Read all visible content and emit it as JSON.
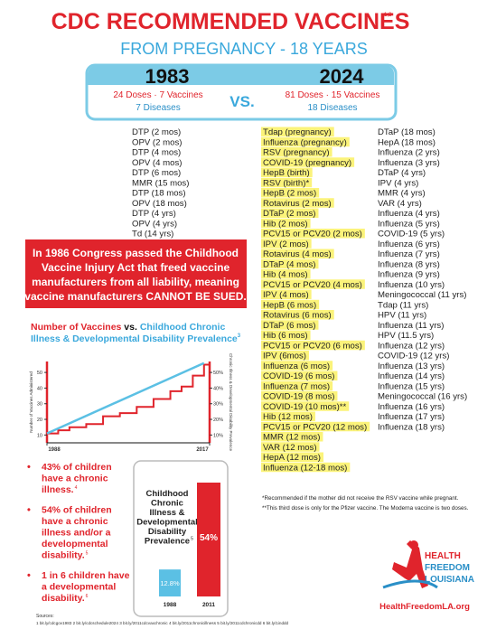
{
  "header": {
    "title": "CDC RECOMMENDED VACCINES",
    "title_note": "1,2",
    "subtitle": "FROM PREGNANCY - 18 YEARS"
  },
  "comparison": {
    "left": {
      "year": "1983",
      "line1": "24 Doses · 7 Vaccines",
      "line2": "7 Diseases"
    },
    "vs": "VS.",
    "right": {
      "year": "2024",
      "line1": "81 Doses · 15 Vaccines",
      "line2": "18 Diseases"
    }
  },
  "list_1983": [
    "DTP (2 mos)",
    "OPV (2 mos)",
    "DTP (4 mos)",
    "OPV (4 mos)",
    "DTP (6 mos)",
    "MMR (15 mos)",
    "DTP (18 mos)",
    "OPV (18 mos)",
    "DTP (4 yrs)",
    "OPV (4 yrs)",
    "Td (14 yrs)"
  ],
  "list_2024_a": [
    "Tdap (pregnancy)",
    "Influenza (pregnancy)",
    "RSV (pregnancy)",
    "COVID-19 (pregnancy)",
    "HepB (birth)",
    "RSV (birth)*",
    "HepB (2 mos)",
    "Rotavirus (2 mos)",
    "DTaP (2 mos)",
    "Hib (2 mos)",
    "PCV15 or PCV20 (2 mos)",
    "IPV (2 mos)",
    "Rotavirus (4 mos)",
    "DTaP (4 mos)",
    "Hib (4 mos)",
    "PCV15 or PCV20 (4 mos)",
    "IPV (4 mos)",
    "HepB (6 mos)",
    "Rotavirus (6 mos)",
    "DTaP (6 mos)",
    "Hib (6 mos)",
    "PCV15 or PCV20 (6 mos)",
    "IPV (6mos)",
    "Influenza (6 mos)",
    "COVID-19 (6 mos)",
    "Influenza (7 mos)",
    "COVID-19 (8 mos)",
    "COVID-19 (10 mos)**",
    "Hib (12 mos)",
    "PCV15 or PCV20 (12 mos)",
    "MMR (12 mos)",
    "VAR (12 mos)",
    "HepA (12 mos)",
    "Influenza (12-18 mos)"
  ],
  "list_2024_b": [
    "DTaP (18 mos)",
    "HepA (18 mos)",
    "Influenza (2 yrs)",
    "Influenza (3 yrs)",
    "DTaP (4 yrs)",
    "IPV (4 yrs)",
    "MMR (4 yrs)",
    "VAR (4 yrs)",
    "Influenza (4 yrs)",
    "Influenza (5 yrs)",
    "COVID-19 (5 yrs)",
    "Influenza (6 yrs)",
    "Influenza (7 yrs)",
    "Influenza (8 yrs)",
    "Influenza (9 yrs)",
    "Influenza (10 yrs)",
    "Meningococcal (11 yrs)",
    "Tdap (11 yrs)",
    "HPV (11 yrs)",
    "Influenza (11 yrs)",
    "HPV (11.5 yrs)",
    "Influenza (12 yrs)",
    "COVID-19 (12 yrs)",
    "Influenza (13 yrs)",
    "Influenza (14 yrs)",
    "Influenza (15 yrs)",
    "Meningococcal (16 yrs)",
    "Influenza (16 yrs)",
    "Influenza (17 yrs)",
    "Influenza (18 yrs)"
  ],
  "notice": [
    "In 1986 Congress passed the Childhood",
    "Vaccine Injury Act that freed vaccine",
    "manufacturers from all liability, meaning",
    "vaccine manufacturers CANNOT BE SUED."
  ],
  "mini_chart": {
    "title_a": "Number of Vaccines",
    "title_vs": "vs.",
    "title_b": "Childhood Chronic",
    "title_c": "Illness & Developmental Disability Prevalence",
    "title_note": "3",
    "y_label": "Number of Vaccines Administered",
    "y2_label": "Chronic Illness & Developmental Disability Prevalence",
    "xlim": [
      1988,
      2017
    ],
    "xticks": [
      1988,
      2017
    ],
    "ylim": [
      5,
      57
    ],
    "yticks": [
      10,
      20,
      30,
      40,
      50
    ],
    "y2lim": [
      5,
      57
    ],
    "y2ticks": [
      {
        "value": 10,
        "label": "10%"
      },
      {
        "value": 20,
        "label": "20%"
      },
      {
        "value": 30,
        "label": "30%"
      },
      {
        "value": 40,
        "label": "40%"
      },
      {
        "value": 50,
        "label": "50%"
      }
    ],
    "series": [
      {
        "color": "#e0242c",
        "x": [
          1988,
          1990,
          1990,
          1992,
          1992,
          1995,
          1995,
          1998,
          1998,
          2001,
          2001,
          2004,
          2004,
          2007,
          2007,
          2010,
          2010,
          2012,
          2012,
          2014,
          2014,
          2016,
          2016,
          2017
        ],
        "values": [
          11,
          11,
          13,
          13,
          15,
          15,
          17,
          17,
          22,
          22,
          24,
          24,
          28,
          28,
          33,
          33,
          38,
          38,
          41,
          41,
          48,
          48,
          55,
          55
        ]
      },
      {
        "color": "#5bc0e4",
        "axis": "y2",
        "x": [
          1988,
          2016
        ],
        "values": [
          11,
          56
        ]
      }
    ]
  },
  "bullets": [
    {
      "text": [
        "43% of children",
        "have a chronic",
        "illness."
      ],
      "note": "4"
    },
    {
      "text": [
        "54% of children",
        "have a chronic",
        "illness and/or a",
        "developmental",
        "disability."
      ],
      "note": "5"
    },
    {
      "text": [
        "1 in 6 children have",
        "a developmental",
        "disability."
      ],
      "note": "6"
    }
  ],
  "bar_chart": {
    "title": [
      "Childhood",
      "Chronic",
      "Illness &",
      "Developmental",
      "Disability",
      "Prevalence"
    ],
    "title_note": "5",
    "categories": [
      "1988",
      "2011"
    ],
    "values": [
      12.8,
      54
    ],
    "value_labels": [
      "12.8%",
      "54%"
    ],
    "colors": [
      "#5bc0e4",
      "#e0242c"
    ],
    "ylim": [
      0,
      60
    ]
  },
  "footnotes": [
    "*Recommended if the  mother did not receive the RSV vaccine while pregnant.",
    "**This third dose is only for the Pfizer vaccine. The Moderna vaccine is two doses."
  ],
  "logo": {
    "lines": [
      "HEALTH",
      "FREEDOM",
      "LOUISIANA"
    ],
    "url": "HealthFreedomLA.org"
  },
  "sources": {
    "label": "Sources:",
    "text": "1 bit.ly/cdcgov1983    2 bit.ly/cdcschedule2024    3 bit.ly/2011cdcvaxchronic    4 bit.ly/2011chronicillness    5 bit.ly/2011cdchronicdd    6 bit.ly/1inddd"
  }
}
